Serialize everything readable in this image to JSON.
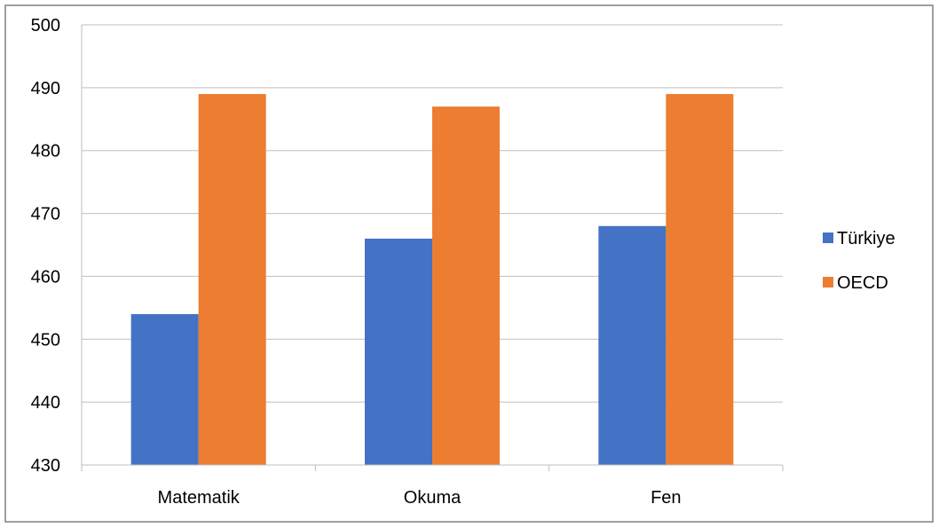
{
  "chart_data": {
    "type": "bar",
    "categories": [
      "Matematik",
      "Okuma",
      "Fen"
    ],
    "series": [
      {
        "name": "Türkiye",
        "values": [
          454,
          466,
          468
        ],
        "color": "#4472C4"
      },
      {
        "name": "OECD",
        "values": [
          489,
          487,
          489
        ],
        "color": "#ED7D31"
      }
    ],
    "ylim": [
      430,
      500
    ],
    "yticks": [
      "430",
      "440",
      "450",
      "460",
      "470",
      "480",
      "490",
      "500"
    ],
    "grid": true,
    "legend_position": "right",
    "title": "",
    "xlabel": "",
    "ylabel": ""
  },
  "colors": {
    "gridline": "#BFBFBF",
    "axis": "#BFBFBF",
    "border": "#808080"
  }
}
